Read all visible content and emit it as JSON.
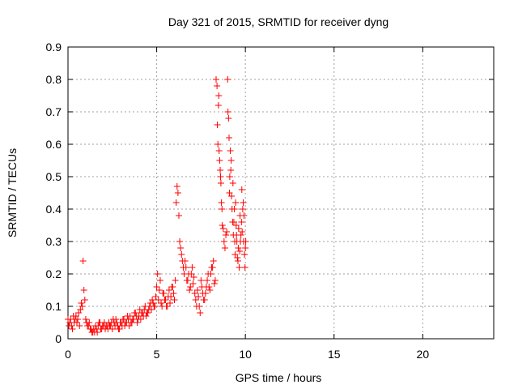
{
  "chart_data": {
    "type": "scatter",
    "title": "Day 321 of 2015, SRMTID for receiver dyng",
    "xlabel": "GPS time / hours",
    "ylabel": "SRMTID / TECUs",
    "xlim": [
      0,
      24
    ],
    "ylim": [
      0,
      0.9
    ],
    "xticks": [
      0,
      5,
      10,
      15,
      20
    ],
    "yticks": [
      0,
      0.1,
      0.2,
      0.3,
      0.4,
      0.5,
      0.6,
      0.7,
      0.8,
      0.9
    ],
    "xtick_labels": [
      "0",
      "5",
      "10",
      "15",
      "20"
    ],
    "ytick_labels": [
      "0",
      "0.1",
      "0.2",
      "0.3",
      "0.4",
      "0.5",
      "0.6",
      "0.7",
      "0.8",
      "0.9"
    ],
    "grid": true,
    "marker": "plus",
    "series": [
      {
        "name": "SRMTID",
        "color": "#ff0000",
        "x": [
          0.0,
          0.1,
          0.2,
          0.3,
          0.4,
          0.5,
          0.6,
          0.7,
          0.8,
          0.85,
          0.9,
          1.0,
          1.1,
          1.2,
          1.3,
          1.4,
          1.5,
          1.6,
          1.7,
          1.8,
          1.9,
          2.0,
          2.1,
          2.2,
          2.3,
          2.4,
          2.5,
          2.6,
          2.7,
          2.8,
          2.9,
          3.0,
          3.1,
          3.2,
          3.3,
          3.4,
          3.5,
          3.6,
          3.7,
          3.8,
          3.9,
          4.0,
          4.1,
          4.2,
          4.3,
          4.4,
          4.5,
          4.6,
          4.7,
          4.8,
          4.9,
          5.0,
          5.1,
          5.2,
          5.3,
          5.4,
          5.5,
          5.6,
          5.7,
          5.8,
          5.9,
          6.0,
          6.1,
          6.15,
          6.2,
          6.25,
          6.3,
          6.4,
          6.5,
          6.6,
          6.7,
          6.8,
          6.9,
          7.0,
          7.1,
          7.2,
          7.3,
          7.4,
          7.5,
          7.6,
          7.7,
          7.8,
          7.9,
          8.0,
          8.1,
          8.2,
          8.3,
          8.35,
          8.4,
          8.45,
          8.5,
          8.55,
          8.6,
          8.65,
          8.7,
          8.8,
          8.9,
          9.0,
          9.05,
          9.1,
          9.15,
          9.2,
          9.25,
          9.3,
          9.35,
          9.4,
          9.45,
          9.5,
          9.55,
          9.6,
          9.65,
          9.7,
          9.75,
          9.8,
          9.85,
          9.9,
          9.95,
          10.0,
          0.05,
          0.15,
          0.25,
          0.35,
          0.45,
          0.55,
          0.65,
          0.75,
          0.95,
          1.05,
          1.15,
          1.25,
          1.35,
          1.45,
          1.55,
          1.65,
          1.75,
          1.85,
          1.95,
          2.05,
          2.15,
          2.25,
          2.35,
          2.45,
          2.55,
          2.65,
          2.75,
          2.85,
          2.95,
          3.05,
          3.15,
          3.25,
          3.35,
          3.45,
          3.55,
          3.65,
          3.75,
          3.85,
          3.95,
          4.05,
          4.15,
          4.25,
          4.35,
          4.45,
          4.55,
          4.65,
          4.75,
          4.85,
          4.95,
          5.05,
          5.15,
          5.25,
          5.35,
          5.45,
          5.55,
          5.65,
          5.75,
          5.85,
          5.95,
          6.05,
          6.35,
          6.45,
          6.55,
          6.65,
          6.75,
          6.85,
          6.95,
          7.05,
          7.15,
          7.25,
          7.35,
          7.45,
          7.55,
          7.65,
          7.75,
          7.85,
          7.95,
          8.05,
          8.15,
          8.25,
          8.42,
          8.48,
          8.52,
          8.58,
          8.62,
          8.68,
          8.75,
          8.85,
          8.95,
          9.02,
          9.08,
          9.12,
          9.18,
          9.22,
          9.28,
          9.32,
          9.38,
          9.42,
          9.48,
          9.52,
          9.58,
          9.62,
          9.68,
          9.72,
          9.78,
          9.82,
          9.88,
          9.92,
          9.98,
          10.02
        ],
        "y": [
          0.06,
          0.05,
          0.04,
          0.07,
          0.06,
          0.05,
          0.08,
          0.09,
          0.1,
          0.24,
          0.15,
          0.06,
          0.04,
          0.05,
          0.03,
          0.02,
          0.02,
          0.03,
          0.04,
          0.05,
          0.03,
          0.04,
          0.03,
          0.04,
          0.05,
          0.04,
          0.03,
          0.05,
          0.06,
          0.04,
          0.03,
          0.05,
          0.06,
          0.04,
          0.05,
          0.06,
          0.07,
          0.05,
          0.06,
          0.08,
          0.05,
          0.07,
          0.06,
          0.08,
          0.09,
          0.07,
          0.08,
          0.1,
          0.09,
          0.11,
          0.1,
          0.16,
          0.12,
          0.18,
          0.1,
          0.14,
          0.12,
          0.1,
          0.15,
          0.13,
          0.16,
          0.12,
          0.42,
          0.47,
          0.45,
          0.38,
          0.3,
          0.26,
          0.22,
          0.24,
          0.18,
          0.2,
          0.16,
          0.22,
          0.19,
          0.12,
          0.15,
          0.1,
          0.18,
          0.14,
          0.12,
          0.16,
          0.2,
          0.15,
          0.22,
          0.24,
          0.18,
          0.8,
          0.78,
          0.6,
          0.75,
          0.55,
          0.5,
          0.42,
          0.35,
          0.3,
          0.32,
          0.8,
          0.68,
          0.45,
          0.58,
          0.55,
          0.4,
          0.48,
          0.36,
          0.3,
          0.42,
          0.32,
          0.25,
          0.28,
          0.22,
          0.38,
          0.32,
          0.46,
          0.4,
          0.3,
          0.26,
          0.28,
          0.04,
          0.06,
          0.03,
          0.05,
          0.07,
          0.06,
          0.04,
          0.11,
          0.12,
          0.05,
          0.04,
          0.03,
          0.02,
          0.03,
          0.04,
          0.02,
          0.05,
          0.03,
          0.04,
          0.05,
          0.04,
          0.03,
          0.04,
          0.05,
          0.06,
          0.04,
          0.05,
          0.03,
          0.05,
          0.04,
          0.06,
          0.05,
          0.07,
          0.04,
          0.05,
          0.06,
          0.08,
          0.07,
          0.06,
          0.09,
          0.08,
          0.07,
          0.1,
          0.08,
          0.09,
          0.11,
          0.12,
          0.1,
          0.13,
          0.2,
          0.15,
          0.11,
          0.14,
          0.12,
          0.1,
          0.13,
          0.11,
          0.16,
          0.14,
          0.18,
          0.28,
          0.24,
          0.2,
          0.22,
          0.18,
          0.15,
          0.2,
          0.17,
          0.14,
          0.1,
          0.13,
          0.08,
          0.16,
          0.12,
          0.14,
          0.18,
          0.16,
          0.2,
          0.22,
          0.17,
          0.66,
          0.72,
          0.58,
          0.52,
          0.48,
          0.4,
          0.34,
          0.28,
          0.33,
          0.7,
          0.62,
          0.5,
          0.52,
          0.44,
          0.36,
          0.32,
          0.4,
          0.26,
          0.35,
          0.3,
          0.24,
          0.34,
          0.27,
          0.3,
          0.36,
          0.33,
          0.42,
          0.38,
          0.22,
          0.3
        ]
      }
    ]
  }
}
